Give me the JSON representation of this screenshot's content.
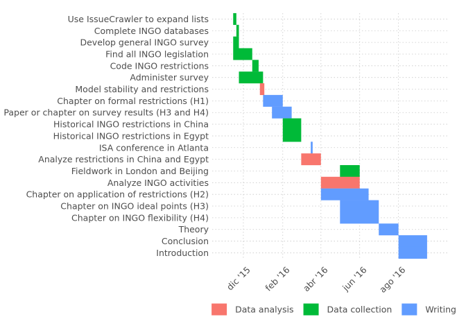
{
  "chart_data": {
    "type": "gantt",
    "x_axis": {
      "type": "date",
      "range": [
        "2015-10-13",
        "2016-10-20"
      ],
      "ticks": [
        {
          "date": "2015-12-01",
          "label": "dic '15"
        },
        {
          "date": "2016-02-01",
          "label": "feb '16"
        },
        {
          "date": "2016-04-01",
          "label": "abr '16"
        },
        {
          "date": "2016-06-01",
          "label": "jun '16"
        },
        {
          "date": "2016-08-01",
          "label": "ago '16"
        }
      ]
    },
    "grid": true,
    "legend": {
      "placement": "bottom",
      "entries": [
        {
          "label": "Data analysis",
          "color": "#F8766D"
        },
        {
          "label": "Data collection",
          "color": "#00BA38"
        },
        {
          "label": "Writing",
          "color": "#619CFF"
        }
      ]
    },
    "tasks": [
      {
        "label": "Use IssueCrawler to expand lists",
        "category": "Data collection",
        "start": "2015-11-15",
        "end": "2015-11-20"
      },
      {
        "label": "Complete INGO databases",
        "category": "Data collection",
        "start": "2015-11-20",
        "end": "2015-11-24"
      },
      {
        "label": "Develop general INGO survey",
        "category": "Data collection",
        "start": "2015-11-15",
        "end": "2015-11-24"
      },
      {
        "label": "Find all INGO legislation",
        "category": "Data collection",
        "start": "2015-11-15",
        "end": "2015-12-15"
      },
      {
        "label": "Code INGO restrictions",
        "category": "Data collection",
        "start": "2015-12-15",
        "end": "2015-12-25"
      },
      {
        "label": "Administer survey",
        "category": "Data collection",
        "start": "2015-11-24",
        "end": "2016-01-01"
      },
      {
        "label": "Model stability and restrictions",
        "category": "Data analysis",
        "start": "2015-12-27",
        "end": "2016-01-03"
      },
      {
        "label": "Chapter on formal restrictions (H1)",
        "category": "Writing",
        "start": "2016-01-01",
        "end": "2016-02-01"
      },
      {
        "label": "Paper or chapter on survey results (H3 and H4)",
        "category": "Writing",
        "start": "2016-01-15",
        "end": "2016-02-15"
      },
      {
        "label": "Historical INGO restrictions in China",
        "category": "Data collection",
        "start": "2016-02-01",
        "end": "2016-03-01"
      },
      {
        "label": "Historical INGO restrictions in Egypt",
        "category": "Data collection",
        "start": "2016-02-01",
        "end": "2016-03-01"
      },
      {
        "label": "ISA conference in Atlanta",
        "category": "Writing",
        "start": "2016-03-16",
        "end": "2016-03-19"
      },
      {
        "label": "Analyze restrictions in China and Egypt",
        "category": "Data analysis",
        "start": "2016-03-01",
        "end": "2016-04-01"
      },
      {
        "label": "Fieldwork in London and Beijing",
        "category": "Data collection",
        "start": "2016-05-01",
        "end": "2016-06-01"
      },
      {
        "label": "Analyze INGO activities",
        "category": "Data analysis",
        "start": "2016-04-01",
        "end": "2016-06-01"
      },
      {
        "label": "Chapter on application of restrictions (H2)",
        "category": "Writing",
        "start": "2016-04-01",
        "end": "2016-06-15"
      },
      {
        "label": "Chapter on INGO ideal points (H3)",
        "category": "Writing",
        "start": "2016-05-01",
        "end": "2016-07-01"
      },
      {
        "label": "Chapter on INGO flexibility (H4)",
        "category": "Writing",
        "start": "2016-05-01",
        "end": "2016-07-01"
      },
      {
        "label": "Theory",
        "category": "Writing",
        "start": "2016-07-01",
        "end": "2016-08-01"
      },
      {
        "label": "Conclusion",
        "category": "Writing",
        "start": "2016-08-01",
        "end": "2016-09-15"
      },
      {
        "label": "Introduction",
        "category": "Writing",
        "start": "2016-08-01",
        "end": "2016-09-15"
      }
    ]
  }
}
